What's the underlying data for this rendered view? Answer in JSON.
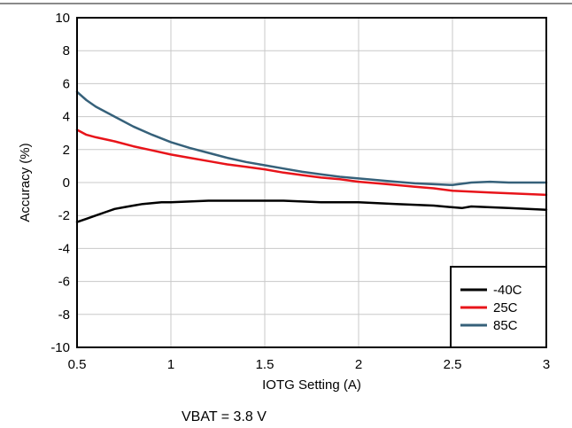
{
  "chart_data": {
    "type": "line",
    "title": "",
    "xlabel": "IOTG Setting (A)",
    "ylabel": "Accuracy (%)",
    "caption": "VBAT = 3.8 V",
    "xlim": [
      0.5,
      3
    ],
    "ylim": [
      -10,
      10
    ],
    "xticks": [
      0.5,
      1,
      1.5,
      2,
      2.5,
      3
    ],
    "xtick_labels": [
      "0.5",
      "1",
      "1.5",
      "2",
      "2.5",
      "3"
    ],
    "yticks": [
      -10,
      -8,
      -6,
      -4,
      -2,
      0,
      2,
      4,
      6,
      8,
      10
    ],
    "ytick_labels": [
      "-10",
      "-8",
      "-6",
      "-4",
      "-2",
      "0",
      "2",
      "4",
      "6",
      "8",
      "10"
    ],
    "grid": true,
    "legend_position": "bottom-right",
    "series": [
      {
        "name": "-40C",
        "color": "#000000",
        "x": [
          0.5,
          0.55,
          0.6,
          0.65,
          0.7,
          0.75,
          0.8,
          0.85,
          0.9,
          0.95,
          1.0,
          1.1,
          1.2,
          1.3,
          1.4,
          1.5,
          1.6,
          1.7,
          1.8,
          1.9,
          2.0,
          2.1,
          2.2,
          2.3,
          2.4,
          2.5,
          2.55,
          2.6,
          2.7,
          2.8,
          2.9,
          3.0
        ],
        "y": [
          -2.4,
          -2.2,
          -2.0,
          -1.8,
          -1.6,
          -1.5,
          -1.4,
          -1.3,
          -1.25,
          -1.2,
          -1.2,
          -1.15,
          -1.1,
          -1.1,
          -1.1,
          -1.1,
          -1.1,
          -1.15,
          -1.2,
          -1.2,
          -1.2,
          -1.25,
          -1.3,
          -1.35,
          -1.4,
          -1.5,
          -1.55,
          -1.45,
          -1.5,
          -1.55,
          -1.6,
          -1.65
        ]
      },
      {
        "name": "25C",
        "color": "#e8141a",
        "x": [
          0.5,
          0.55,
          0.6,
          0.7,
          0.8,
          0.9,
          1.0,
          1.1,
          1.2,
          1.3,
          1.4,
          1.5,
          1.6,
          1.7,
          1.8,
          1.9,
          2.0,
          2.1,
          2.2,
          2.3,
          2.4,
          2.5,
          2.6,
          2.7,
          2.8,
          2.9,
          3.0
        ],
        "y": [
          3.2,
          2.9,
          2.75,
          2.5,
          2.2,
          1.95,
          1.7,
          1.5,
          1.3,
          1.1,
          0.95,
          0.8,
          0.6,
          0.45,
          0.3,
          0.2,
          0.05,
          -0.05,
          -0.15,
          -0.25,
          -0.35,
          -0.5,
          -0.55,
          -0.6,
          -0.65,
          -0.7,
          -0.75
        ]
      },
      {
        "name": "85C",
        "color": "#36617a",
        "x": [
          0.5,
          0.55,
          0.6,
          0.65,
          0.7,
          0.8,
          0.9,
          1.0,
          1.1,
          1.2,
          1.3,
          1.4,
          1.5,
          1.6,
          1.7,
          1.8,
          1.9,
          2.0,
          2.1,
          2.2,
          2.3,
          2.4,
          2.5,
          2.6,
          2.7,
          2.8,
          2.9,
          3.0
        ],
        "y": [
          5.5,
          5.0,
          4.6,
          4.3,
          4.0,
          3.4,
          2.9,
          2.45,
          2.1,
          1.8,
          1.5,
          1.25,
          1.05,
          0.85,
          0.65,
          0.5,
          0.35,
          0.25,
          0.15,
          0.05,
          -0.05,
          -0.1,
          -0.15,
          0.0,
          0.05,
          0.0,
          0.0,
          0.0
        ]
      }
    ]
  }
}
